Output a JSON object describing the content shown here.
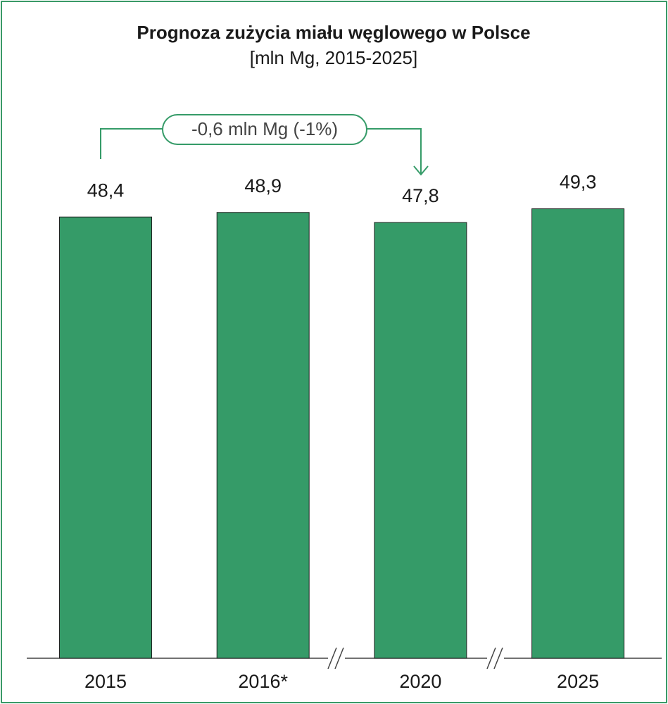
{
  "chart_data": {
    "type": "bar",
    "title": "Prognoza zużycia miału węglowego w Polsce",
    "subtitle": "[mln Mg, 2015-2025]",
    "categories": [
      "2015",
      "2016*",
      "2020",
      "2025"
    ],
    "values": [
      48.4,
      48.9,
      47.8,
      49.3
    ],
    "value_labels": [
      "48,4",
      "48,9",
      "47,8",
      "49,3"
    ],
    "color": "#359b68",
    "annotation": "-0,6 mln Mg (-1%)"
  }
}
